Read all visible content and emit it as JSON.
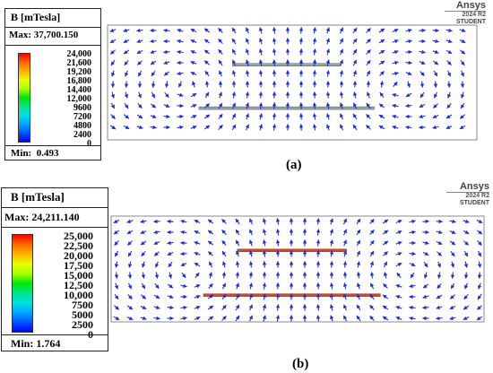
{
  "panels": [
    {
      "id": "a",
      "label": "(a)",
      "legend_title": "B [mTesla]",
      "max_text": "Max: 37,700.150",
      "min_text": "Min:  0.493",
      "ticks": [
        "24,000",
        "21,600",
        "19,200",
        "16,800",
        "14,400",
        "12,000",
        "9600",
        "7200",
        "4800",
        "2400",
        "0"
      ],
      "software": {
        "brand": "Ansys",
        "version": "2024 R2",
        "edition": "STUDENT"
      }
    },
    {
      "id": "b",
      "label": "(b)",
      "legend_title": "B [mTesla]",
      "max_text": "Max: 24,211.140",
      "min_text": "Min: 1.764",
      "ticks": [
        "25,000",
        "22,500",
        "20,000",
        "17,500",
        "15,000",
        "12,500",
        "10,000",
        "7500",
        "5000",
        "2500",
        "0"
      ],
      "software": {
        "brand": "Ansys",
        "version": "2024 R2",
        "edition": "STUDENT"
      }
    }
  ],
  "colors": {
    "vector": "#1b2fd6",
    "frame": "#8a8a8a",
    "plate_upper": "#9aa3a6",
    "plate_lower": "#9aa3a6",
    "plate_hot": "#d0472a",
    "colorbar_stops": [
      "#ff0000",
      "#ff6a00",
      "#ffb300",
      "#e6ff00",
      "#a8ff00",
      "#00e600",
      "#00e68a",
      "#00e0e0",
      "#00a8ff",
      "#0055ff",
      "#0000ff"
    ]
  }
}
